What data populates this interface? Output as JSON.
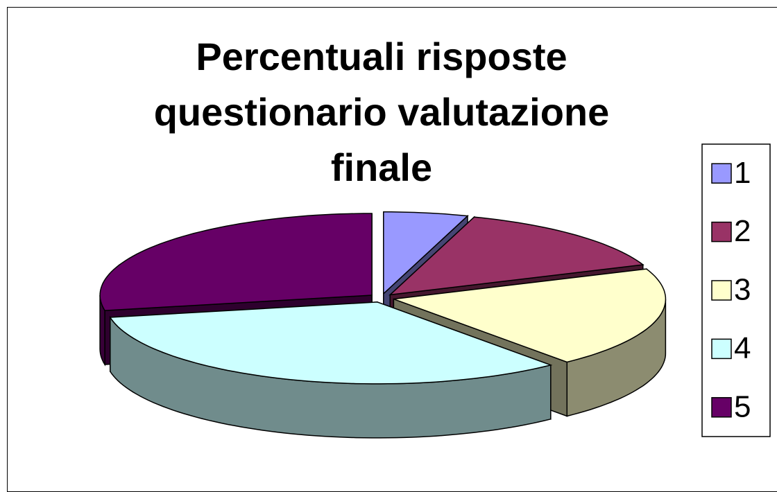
{
  "chart_data": {
    "type": "pie",
    "title": "Percentuali risposte questionario valutazione finale",
    "categories": [
      "1",
      "2",
      "3",
      "4",
      "5"
    ],
    "values": [
      5,
      14,
      20,
      33,
      28
    ],
    "colors": [
      "#9999ff",
      "#993366",
      "#ffffcc",
      "#ccffff",
      "#660066"
    ],
    "legend": "right"
  }
}
